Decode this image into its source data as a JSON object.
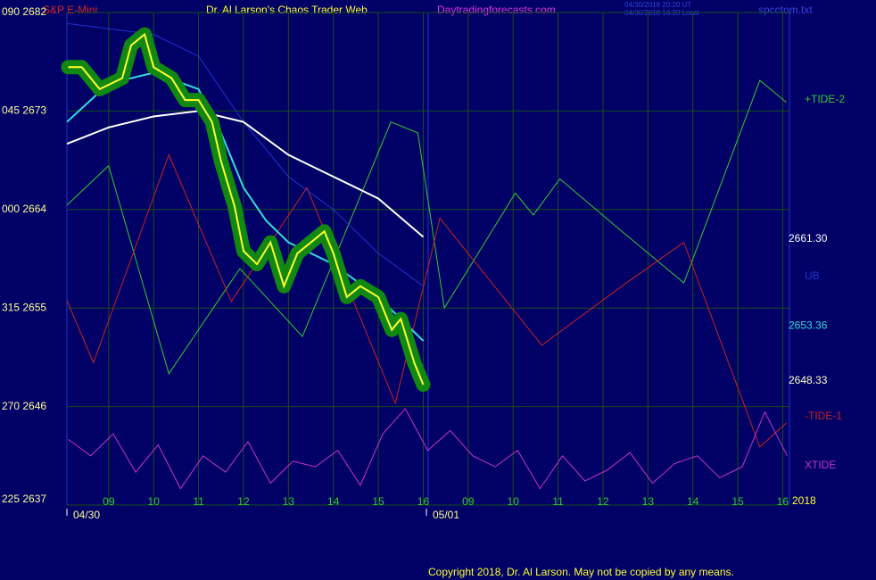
{
  "chart_data": {
    "type": "line",
    "symbol": "S&P E-Mini",
    "title": "Dr. Al Larson's Chaos Trader Web",
    "site": "Daytradingforecasts.com",
    "timestamps": [
      "04/30/2018 20:20 UT",
      "04/30/2018 16:20 Local"
    ],
    "file": "spcctom.txt",
    "copyright": "Copyright 2018, Dr. Al Larson. May not be copied by any means.",
    "ylim": [
      2637,
      2682
    ],
    "yticks": [
      {
        "value": 2682,
        "label": "090  2682"
      },
      {
        "value": 2673,
        "label": "045  2673"
      },
      {
        "value": 2664,
        "label": "000  2664"
      },
      {
        "value": 2655,
        "label": "315  2655"
      },
      {
        "value": 2646,
        "label": "270  2646"
      },
      {
        "value": 2637,
        "label": "225  2637"
      }
    ],
    "xlim": [
      -0.93,
      15.15
    ],
    "xticks": [
      {
        "value": 0,
        "label": "09"
      },
      {
        "value": 1,
        "label": "10"
      },
      {
        "value": 2,
        "label": "11"
      },
      {
        "value": 3,
        "label": "12"
      },
      {
        "value": 4,
        "label": "13"
      },
      {
        "value": 5,
        "label": "14"
      },
      {
        "value": 6,
        "label": "15"
      },
      {
        "value": 7,
        "label": "16"
      },
      {
        "value": 8,
        "label": "09"
      },
      {
        "value": 9,
        "label": "10"
      },
      {
        "value": 10,
        "label": "11"
      },
      {
        "value": 11,
        "label": "12"
      },
      {
        "value": 12,
        "label": "13"
      },
      {
        "value": 13,
        "label": "14"
      },
      {
        "value": 14,
        "label": "15"
      },
      {
        "value": 15,
        "label": "16"
      }
    ],
    "dates": [
      {
        "value": -0.93,
        "label": "04/30"
      },
      {
        "value": 7.07,
        "label": "05/01"
      }
    ],
    "year": "2018",
    "grid": true,
    "series": [
      {
        "name": "+TIDE-2",
        "color": "#33cc33",
        "x": [
          -0.93,
          0,
          1.34,
          2.92,
          4.31,
          6.28,
          6.88,
          7.47,
          9.05,
          9.45,
          10.04,
          11.42,
          12.8,
          14.49,
          15.08
        ],
        "values": [
          2664.4,
          2668,
          2649,
          2658.6,
          2652.4,
          2672,
          2671,
          2655,
          2665.5,
          2663.5,
          2666.8,
          2662,
          2657.3,
          2675.8,
          2673.8
        ]
      },
      {
        "name": "-TIDE-1",
        "color": "#cc2222",
        "x": [
          -0.93,
          -0.34,
          1.34,
          2.73,
          4.41,
          6.38,
          7.37,
          9.64,
          11.42,
          12.8,
          14.49,
          15.08
        ],
        "values": [
          2655.7,
          2650,
          2669,
          2655.6,
          2666,
          2646.3,
          2663.2,
          2651.6,
          2657,
          2661,
          2642.3,
          2644.5
        ]
      },
      {
        "name": "XTIDE",
        "color": "#cc33cc",
        "x": [
          -0.9,
          -0.4,
          0.1,
          0.6,
          1.1,
          1.6,
          2.1,
          2.6,
          3.1,
          3.6,
          4.1,
          4.6,
          5.1,
          5.6,
          6.1,
          6.6,
          7.1,
          7.6,
          8.1,
          8.6,
          9.1,
          9.6,
          10.1,
          10.6,
          11.1,
          11.6,
          12.1,
          12.6,
          13.1,
          13.6,
          14.1,
          14.6,
          15.1
        ],
        "values": [
          2643,
          2641.5,
          2643.5,
          2640,
          2642.5,
          2638.5,
          2641.5,
          2640,
          2642.8,
          2639,
          2641,
          2640.5,
          2642,
          2638.8,
          2643.5,
          2645.8,
          2642,
          2643.8,
          2641.5,
          2640.5,
          2642,
          2638.5,
          2641.5,
          2639.2,
          2640.2,
          2641.8,
          2639,
          2640.8,
          2641.5,
          2639.5,
          2640.5,
          2645.5,
          2641.5
        ]
      },
      {
        "name": "UB",
        "color": "#2233cc",
        "x": [
          -0.93,
          1,
          2,
          3,
          4,
          5,
          6,
          7
        ],
        "values": [
          2681,
          2680,
          2678,
          2672,
          2667,
          2664,
          2660,
          2657
        ]
      },
      {
        "color": "#ffffff",
        "x": [
          -0.93,
          0,
          1,
          2,
          3,
          4,
          5,
          6,
          7
        ],
        "values": [
          2670,
          2671.5,
          2672.5,
          2673,
          2672,
          2669,
          2667,
          2665,
          2661.5
        ]
      },
      {
        "color": "#33dddd",
        "x": [
          -0.93,
          0,
          1,
          2,
          2.5,
          3,
          3.5,
          4,
          5,
          6,
          7
        ],
        "values": [
          2672,
          2675.5,
          2676.5,
          2675,
          2671,
          2666,
          2663,
          2661,
          2659,
          2656,
          2652
        ]
      },
      {
        "color": "#ffff33",
        "x": [
          -0.9,
          -0.6,
          -0.2,
          0.3,
          0.5,
          0.8,
          1.0,
          1.4,
          1.7,
          2.0,
          2.3,
          2.5,
          2.8,
          3.0,
          3.3,
          3.6,
          3.9,
          4.2,
          4.5,
          4.8,
          5.0,
          5.3,
          5.6,
          6.0,
          6.3,
          6.5,
          6.8,
          7.0
        ],
        "values": [
          2677,
          2677,
          2675,
          2676,
          2679,
          2680,
          2677,
          2676,
          2674,
          2674,
          2672,
          2668.4,
          2664.3,
          2660.2,
          2659,
          2661,
          2657,
          2660,
          2661,
          2662,
          2660,
          2656,
          2657,
          2656,
          2653,
          2654,
          2650,
          2648
        ]
      }
    ],
    "price_labels": [
      {
        "value": 2661.3,
        "label": "2661.30",
        "color": "#ffffff"
      },
      {
        "value": 2653.36,
        "label": "2653.36",
        "color": "#33dddd"
      },
      {
        "value": 2648.33,
        "label": "2648.33",
        "color": "#ffffcc"
      }
    ]
  }
}
